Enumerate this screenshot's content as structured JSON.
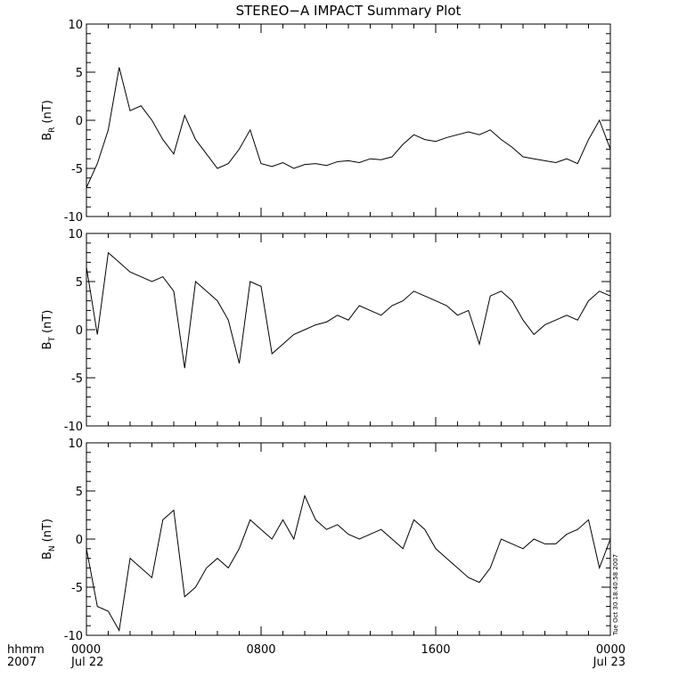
{
  "chart_data": [
    {
      "type": "line",
      "title": "STEREO−A IMPACT Summary Plot",
      "ylabel": {
        "symbol": "B",
        "sub": "R",
        "unit": "(nT)"
      },
      "x": [
        0,
        0.5,
        1,
        1.5,
        2,
        2.5,
        3,
        3.5,
        4,
        4.5,
        5,
        5.5,
        6,
        6.5,
        7,
        7.5,
        8,
        8.5,
        9,
        9.5,
        10,
        10.5,
        11,
        11.5,
        12,
        12.5,
        13,
        13.5,
        14,
        14.5,
        15,
        15.5,
        16,
        16.5,
        17,
        17.5,
        18,
        18.5,
        19,
        19.5,
        20,
        20.5,
        21,
        21.5,
        22,
        22.5,
        23,
        23.5,
        24
      ],
      "values": [
        -7,
        -4.5,
        -1,
        5.5,
        1,
        1.5,
        0,
        -2,
        -3.5,
        0.5,
        -2,
        -3.5,
        -5,
        -4.5,
        -3,
        -1,
        -4.5,
        -4.8,
        -4.4,
        -5,
        -4.6,
        -4.5,
        -4.7,
        -4.3,
        -4.2,
        -4.4,
        -4,
        -4.1,
        -3.8,
        -2.5,
        -1.5,
        -2,
        -2.2,
        -1.8,
        -1.5,
        -1.2,
        -1.5,
        -1,
        -2,
        -2.8,
        -3.8,
        -4,
        -4.2,
        -4.4,
        -4,
        -4.5,
        -2,
        0,
        -3
      ],
      "color": "#000000",
      "xlim": [
        0,
        24
      ],
      "xticks": [
        0,
        8,
        16,
        24
      ],
      "xminor": 1,
      "ylim": [
        -10,
        10
      ],
      "yticks": [
        -10,
        -5,
        0,
        5,
        10
      ],
      "yminor": 1
    },
    {
      "type": "line",
      "ylabel": {
        "symbol": "B",
        "sub": "T",
        "unit": "(nT)"
      },
      "x": [
        0,
        0.5,
        1,
        1.5,
        2,
        2.5,
        3,
        3.5,
        4,
        4.5,
        5,
        5.5,
        6,
        6.5,
        7,
        7.5,
        8,
        8.5,
        9,
        9.5,
        10,
        10.5,
        11,
        11.5,
        12,
        12.5,
        13,
        13.5,
        14,
        14.5,
        15,
        15.5,
        16,
        16.5,
        17,
        17.5,
        18,
        18.5,
        19,
        19.5,
        20,
        20.5,
        21,
        21.5,
        22,
        22.5,
        23,
        23.5,
        24
      ],
      "values": [
        6.5,
        -0.5,
        8,
        7,
        6,
        5.5,
        5,
        5.5,
        4,
        -4,
        5,
        4,
        3,
        1,
        -3.5,
        5,
        4.5,
        -2.5,
        -1.5,
        -0.5,
        0,
        0.5,
        0.8,
        1.5,
        1,
        2.5,
        2,
        1.5,
        2.5,
        3,
        4,
        3.5,
        3,
        2.5,
        1.5,
        2,
        -1.5,
        3.5,
        4,
        3,
        1,
        -0.5,
        0.5,
        1,
        1.5,
        1,
        3,
        4,
        3.5
      ],
      "color": "#000000",
      "xlim": [
        0,
        24
      ],
      "xticks": [
        0,
        8,
        16,
        24
      ],
      "xminor": 1,
      "ylim": [
        -10,
        10
      ],
      "yticks": [
        -10,
        -5,
        0,
        5,
        10
      ],
      "yminor": 1
    },
    {
      "type": "line",
      "ylabel": {
        "symbol": "B",
        "sub": "N",
        "unit": "(nT)"
      },
      "x": [
        0,
        0.5,
        1,
        1.5,
        2,
        2.5,
        3,
        3.5,
        4,
        4.5,
        5,
        5.5,
        6,
        6.5,
        7,
        7.5,
        8,
        8.5,
        9,
        9.5,
        10,
        10.5,
        11,
        11.5,
        12,
        12.5,
        13,
        13.5,
        14,
        14.5,
        15,
        15.5,
        16,
        16.5,
        17,
        17.5,
        18,
        18.5,
        19,
        19.5,
        20,
        20.5,
        21,
        21.5,
        22,
        22.5,
        23,
        23.5,
        24
      ],
      "values": [
        -1,
        -7,
        -7.5,
        -9.5,
        -2,
        -3,
        -4,
        2,
        3,
        -6,
        -5,
        -3,
        -2,
        -3,
        -1,
        2,
        1,
        0,
        2,
        0,
        4.5,
        2,
        1,
        1.5,
        0.5,
        0,
        0.5,
        1,
        0,
        -1,
        2,
        1,
        -1,
        -2,
        -3,
        -4,
        -4.5,
        -3,
        0,
        -0.5,
        -1,
        0,
        -0.5,
        -0.5,
        0.5,
        1,
        2,
        -3,
        0
      ],
      "color": "#000000",
      "xlim": [
        0,
        24
      ],
      "xticks": [
        {
          "value": 0,
          "label": "0000"
        },
        {
          "value": 8,
          "label": "0800"
        },
        {
          "value": 16,
          "label": "1600"
        },
        {
          "value": 24,
          "label": "0000"
        }
      ],
      "date_labels": [
        {
          "value": 0,
          "label": "Jul 22"
        },
        {
          "value": 24,
          "label": "Jul 23"
        }
      ],
      "time_label": "hhmm",
      "year_label": "2007",
      "xminor": 1,
      "timestamp": "Tue Oct 30 18:40:58 2007",
      "ylim": [
        -10,
        10
      ],
      "yticks": [
        -10,
        -5,
        0,
        5,
        10
      ],
      "yminor": 1
    }
  ]
}
